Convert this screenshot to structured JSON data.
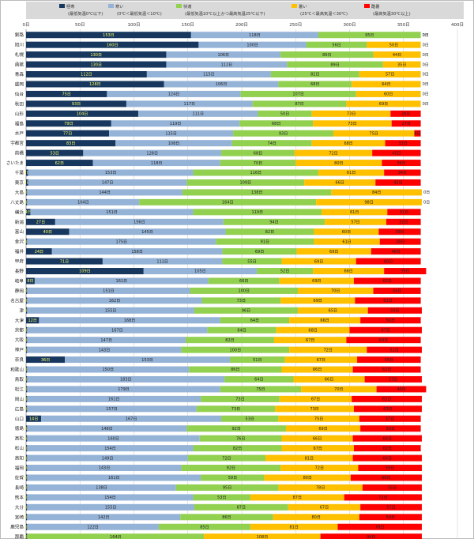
{
  "chart_data": {
    "type": "bar",
    "orientation": "horizontal",
    "stacked": true,
    "xlim": [
      0,
      400
    ],
    "x_ticks": [
      "0日",
      "50日",
      "100日",
      "150日",
      "200日",
      "250日",
      "300日",
      "350日",
      "400日"
    ],
    "grid": true,
    "legend_position": "top",
    "unit_suffix": "日",
    "categories": [
      "釧路",
      "旭川",
      "札幌",
      "函館",
      "青森",
      "盛岡",
      "仙台",
      "秋田",
      "山形",
      "福島",
      "水戸",
      "宇都宮",
      "前橋",
      "さいたま",
      "千葉",
      "東京",
      "大島",
      "八丈島",
      "横浜",
      "新潟",
      "富山",
      "金沢",
      "福井",
      "甲府",
      "長野",
      "岐阜",
      "静岡",
      "名古屋",
      "津",
      "大津",
      "京都",
      "大阪",
      "神戸",
      "奈良",
      "和歌山",
      "鳥取",
      "松江",
      "岡山",
      "広島",
      "山口",
      "徳島",
      "高松",
      "松山",
      "高知",
      "福岡",
      "佐賀",
      "長崎",
      "熊本",
      "大分",
      "宮崎",
      "鹿児島",
      "那覇"
    ],
    "series": [
      {
        "name": "極寒",
        "desc": "(最低気温0℃以下)",
        "color": "#17375e",
        "label_color": "#ffff66",
        "values": [
          153,
          160,
          130,
          130,
          112,
          128,
          75,
          93,
          104,
          79,
          77,
          83,
          53,
          62,
          2,
          2,
          1,
          1,
          4,
          27,
          40,
          1,
          24,
          71,
          109,
          8,
          1,
          1,
          1,
          12,
          1,
          1,
          1,
          36,
          1,
          1,
          1,
          1,
          1,
          14,
          1,
          1,
          1,
          1,
          1,
          1,
          1,
          1,
          1,
          1,
          1,
          1
        ]
      },
      {
        "name": "寒い",
        "desc": "(0℃＜最低気温＜10℃)",
        "color": "#95b3d7",
        "label_color": "#222222",
        "values": [
          118,
          100,
          106,
          112,
          115,
          106,
          124,
          117,
          111,
          119,
          115,
          108,
          128,
          118,
          153,
          147,
          144,
          104,
          151,
          156,
          145,
          175,
          158,
          111,
          105,
          161,
          151,
          162,
          155,
          168,
          167,
          147,
          143,
          153,
          150,
          183,
          179,
          161,
          157,
          167,
          148,
          160,
          154,
          149,
          143,
          161,
          138,
          154,
          155,
          142,
          122,
          0
        ]
      },
      {
        "name": "快適",
        "desc": "(最低気温10℃以上かつ最高気温25℃以下)",
        "color": "#92d050",
        "label_color": "#222222",
        "values": [
          95,
          56,
          86,
          89,
          82,
          68,
          107,
          87,
          50,
          68,
          93,
          74,
          68,
          70,
          116,
          109,
          138,
          164,
          119,
          94,
          82,
          91,
          69,
          55,
          52,
          66,
          100,
          73,
          96,
          64,
          64,
          82,
          100,
          51,
          86,
          64,
          75,
          73,
          73,
          53,
          92,
          76,
          82,
          72,
          92,
          59,
          95,
          53,
          87,
          86,
          85,
          164
        ]
      },
      {
        "name": "暑い",
        "desc": "(25℃＜最高気温＜30℃)",
        "color": "#ffc000",
        "label_color": "#222222",
        "values": [
          0,
          50,
          44,
          35,
          57,
          64,
          60,
          69,
          73,
          73,
          75,
          68,
          72,
          80,
          61,
          66,
          84,
          98,
          61,
          57,
          60,
          61,
          69,
          69,
          66,
          69,
          70,
          69,
          65,
          66,
          68,
          67,
          72,
          67,
          66,
          66,
          70,
          67,
          73,
          75,
          69,
          66,
          67,
          81,
          72,
          80,
          78,
          87,
          67,
          80,
          81,
          108
        ]
      },
      {
        "name": "酷暑",
        "desc": "(最高気温30℃以上)",
        "color": "#ff0000",
        "label_color": "#222222",
        "values": [
          0,
          0,
          0,
          0,
          0,
          0,
          0,
          0,
          28,
          27,
          6,
          33,
          45,
          36,
          34,
          42,
          0,
          0,
          31,
          32,
          39,
          38,
          46,
          60,
          39,
          62,
          44,
          61,
          50,
          56,
          67,
          69,
          51,
          59,
          63,
          53,
          46,
          65,
          63,
          57,
          56,
          64,
          62,
          64,
          59,
          66,
          55,
          72,
          57,
          58,
          78,
          94
        ]
      }
    ]
  }
}
